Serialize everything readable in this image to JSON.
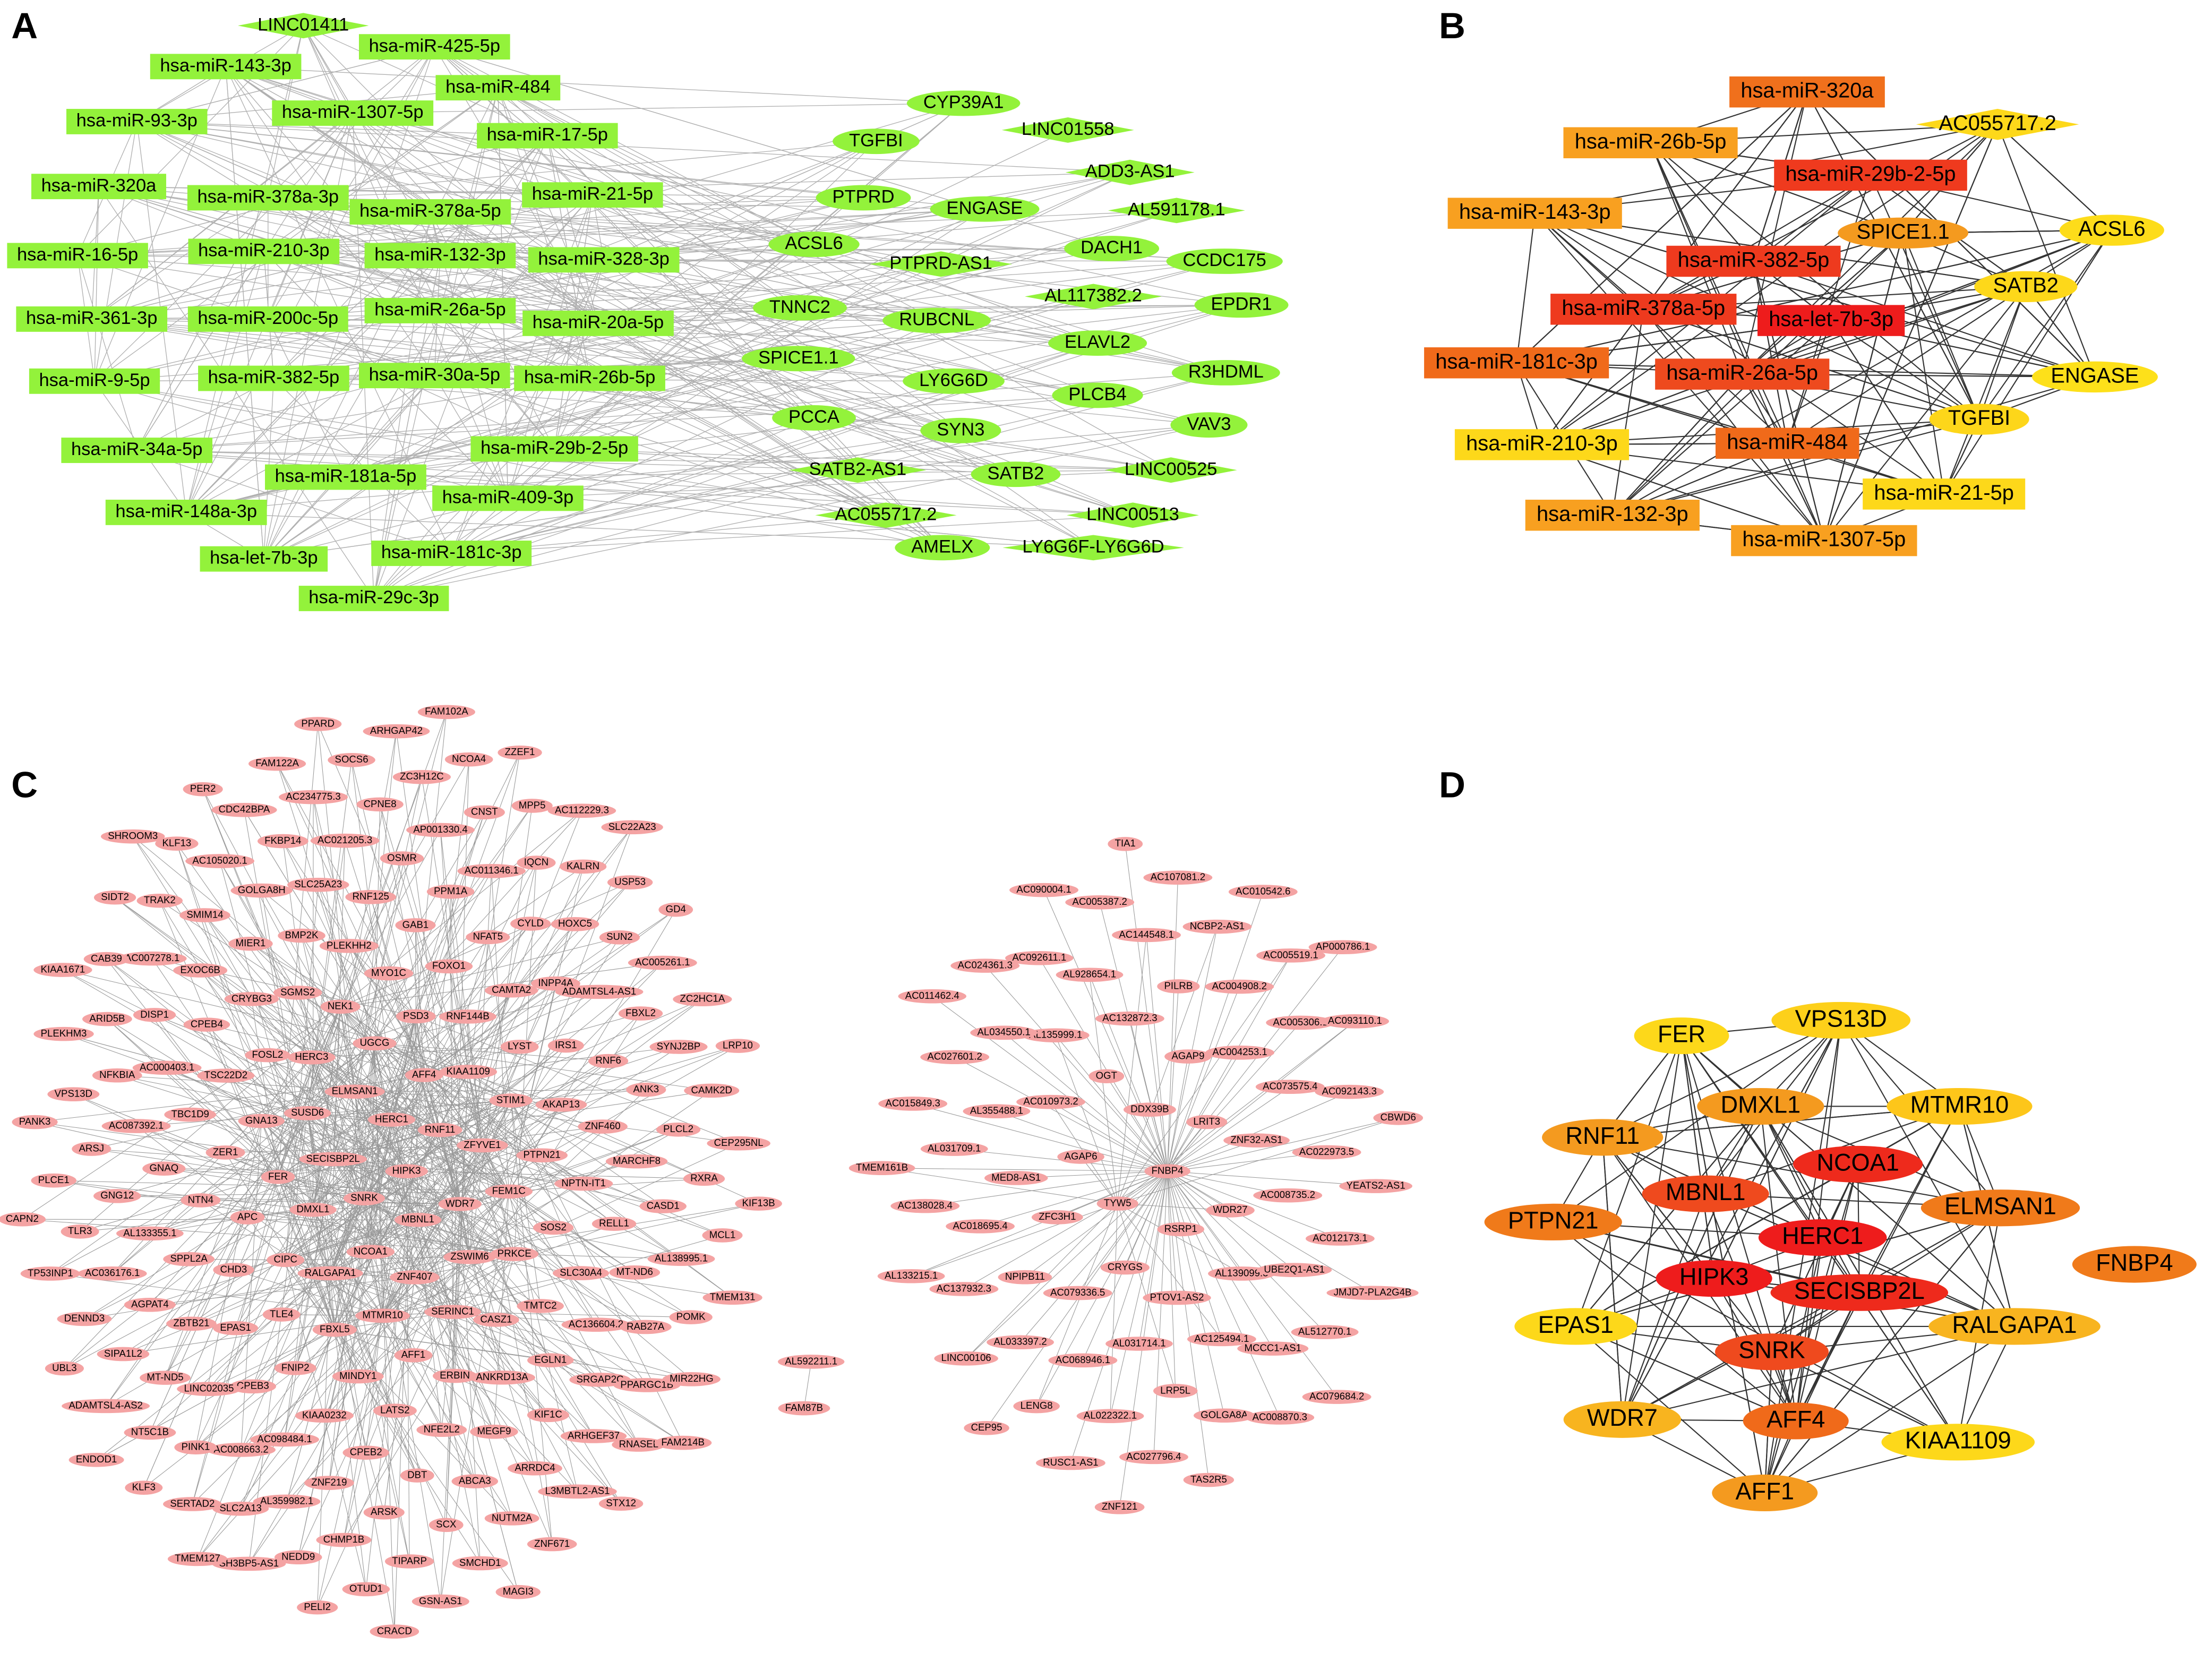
{
  "panels": [
    {
      "label": "A",
      "color": "#93f23b",
      "nodes": [
        {
          "label": "LINC01411",
          "shape": "diamond"
        },
        {
          "label": "hsa-miR-143-3p",
          "shape": "rect"
        },
        {
          "label": "hsa-miR-425-5p",
          "shape": "rect"
        },
        {
          "label": "hsa-miR-484",
          "shape": "rect"
        },
        {
          "label": "hsa-miR-93-3p",
          "shape": "rect"
        },
        {
          "label": "hsa-miR-1307-5p",
          "shape": "rect"
        },
        {
          "label": "hsa-miR-17-5p",
          "shape": "rect"
        },
        {
          "label": "hsa-miR-320a",
          "shape": "rect"
        },
        {
          "label": "hsa-miR-378a-3p",
          "shape": "rect"
        },
        {
          "label": "hsa-miR-21-5p",
          "shape": "rect"
        },
        {
          "label": "hsa-miR-378a-5p",
          "shape": "rect"
        },
        {
          "label": "hsa-miR-16-5p",
          "shape": "rect"
        },
        {
          "label": "hsa-miR-210-3p",
          "shape": "rect"
        },
        {
          "label": "hsa-miR-132-3p",
          "shape": "rect"
        },
        {
          "label": "hsa-miR-328-3p",
          "shape": "rect"
        },
        {
          "label": "hsa-miR-361-3p",
          "shape": "rect"
        },
        {
          "label": "hsa-miR-200c-5p",
          "shape": "rect"
        },
        {
          "label": "hsa-miR-26a-5p",
          "shape": "rect"
        },
        {
          "label": "hsa-miR-20a-5p",
          "shape": "rect"
        },
        {
          "label": "hsa-miR-9-5p",
          "shape": "rect"
        },
        {
          "label": "hsa-miR-382-5p",
          "shape": "rect"
        },
        {
          "label": "hsa-miR-30a-5p",
          "shape": "rect"
        },
        {
          "label": "hsa-miR-26b-5p",
          "shape": "rect"
        },
        {
          "label": "hsa-miR-34a-5p",
          "shape": "rect"
        },
        {
          "label": "hsa-miR-29b-2-5p",
          "shape": "rect"
        },
        {
          "label": "hsa-miR-181a-5p",
          "shape": "rect"
        },
        {
          "label": "hsa-miR-148a-3p",
          "shape": "rect"
        },
        {
          "label": "hsa-miR-409-3p",
          "shape": "rect"
        },
        {
          "label": "hsa-let-7b-3p",
          "shape": "rect"
        },
        {
          "label": "hsa-miR-181c-3p",
          "shape": "rect"
        },
        {
          "label": "hsa-miR-29c-3p",
          "shape": "rect"
        },
        {
          "label": "CYP39A1",
          "shape": "ellipse"
        },
        {
          "label": "LINC01558",
          "shape": "diamond"
        },
        {
          "label": "TGFBI",
          "shape": "ellipse"
        },
        {
          "label": "ADD3-AS1",
          "shape": "diamond"
        },
        {
          "label": "PTPRD",
          "shape": "ellipse"
        },
        {
          "label": "ENGASE",
          "shape": "ellipse"
        },
        {
          "label": "AL591178.1",
          "shape": "diamond"
        },
        {
          "label": "ACSL6",
          "shape": "ellipse"
        },
        {
          "label": "DACH1",
          "shape": "ellipse"
        },
        {
          "label": "CCDC175",
          "shape": "ellipse"
        },
        {
          "label": "PTPRD-AS1",
          "shape": "diamond"
        },
        {
          "label": "AL117382.2",
          "shape": "diamond"
        },
        {
          "label": "EPDR1",
          "shape": "ellipse"
        },
        {
          "label": "TNNC2",
          "shape": "ellipse"
        },
        {
          "label": "RUBCNL",
          "shape": "ellipse"
        },
        {
          "label": "ELAVL2",
          "shape": "ellipse"
        },
        {
          "label": "SPICE1.1",
          "shape": "ellipse"
        },
        {
          "label": "LY6G6D",
          "shape": "ellipse"
        },
        {
          "label": "R3HDML",
          "shape": "ellipse"
        },
        {
          "label": "PLCB4",
          "shape": "ellipse"
        },
        {
          "label": "PCCA",
          "shape": "ellipse"
        },
        {
          "label": "SYN3",
          "shape": "ellipse"
        },
        {
          "label": "VAV3",
          "shape": "ellipse"
        },
        {
          "label": "SATB2-AS1",
          "shape": "diamond"
        },
        {
          "label": "SATB2",
          "shape": "ellipse"
        },
        {
          "label": "LINC00525",
          "shape": "diamond"
        },
        {
          "label": "AC055717.2",
          "shape": "diamond"
        },
        {
          "label": "LINC00513",
          "shape": "diamond"
        },
        {
          "label": "AMELX",
          "shape": "ellipse"
        },
        {
          "label": "LY6G6F-LY6G6D",
          "shape": "diamond"
        }
      ]
    },
    {
      "label": "B",
      "nodes": [
        {
          "label": "hsa-miR-320a",
          "shape": "rect",
          "color": "#f0701c"
        },
        {
          "label": "AC055717.2",
          "shape": "diamond",
          "color": "#fdd81a"
        },
        {
          "label": "hsa-miR-26b-5p",
          "shape": "rect",
          "color": "#f8a020"
        },
        {
          "label": "hsa-miR-29b-2-5p",
          "shape": "rect",
          "color": "#ef3a1e"
        },
        {
          "label": "hsa-miR-143-3p",
          "shape": "rect",
          "color": "#f8a020"
        },
        {
          "label": "SPICE1.1",
          "shape": "ellipse",
          "color": "#f49a1f"
        },
        {
          "label": "ACSL6",
          "shape": "ellipse",
          "color": "#fddc1a"
        },
        {
          "label": "hsa-miR-382-5p",
          "shape": "rect",
          "color": "#ee3a1e"
        },
        {
          "label": "SATB2",
          "shape": "ellipse",
          "color": "#fdd81a"
        },
        {
          "label": "hsa-miR-378a-5p",
          "shape": "rect",
          "color": "#ee3a1e"
        },
        {
          "label": "hsa-let-7b-3p",
          "shape": "rect",
          "color": "#ee1c1c"
        },
        {
          "label": "hsa-miR-181c-3p",
          "shape": "rect",
          "color": "#f06a1a"
        },
        {
          "label": "hsa-miR-26a-5p",
          "shape": "rect",
          "color": "#ee4a1e"
        },
        {
          "label": "ENGASE",
          "shape": "ellipse",
          "color": "#fde01a"
        },
        {
          "label": "TGFBI",
          "shape": "ellipse",
          "color": "#fdd61a"
        },
        {
          "label": "hsa-miR-210-3p",
          "shape": "rect",
          "color": "#fdd81a"
        },
        {
          "label": "hsa-miR-484",
          "shape": "rect",
          "color": "#f06a1a"
        },
        {
          "label": "hsa-miR-21-5p",
          "shape": "rect",
          "color": "#fdd81a"
        },
        {
          "label": "hsa-miR-132-3p",
          "shape": "rect",
          "color": "#f8a020"
        },
        {
          "label": "hsa-miR-1307-5p",
          "shape": "rect",
          "color": "#f8a020"
        }
      ]
    },
    {
      "label": "C",
      "color": "#f4a3a3",
      "components": [
        [
          "HIPK3",
          "SNRK",
          "HERC1",
          "MBNL1",
          "SECISBP2L",
          "RNF11",
          "NCOA1",
          "ELMSAN1",
          "WDR7",
          "DMXL1",
          "AFF4",
          "ZNF407",
          "SUSD6",
          "ZFYVE1",
          "RALGAPA1",
          "UGCG",
          "ZSWIM6",
          "FER",
          "KIAA1109",
          "MTMR10",
          "HERC3",
          "FEM1C",
          "CIPC",
          "PSD3",
          "SERINC1",
          "GNA13",
          "STIM1",
          "FBXL5",
          "NEK1",
          "PRKCE",
          "APC",
          "RNF144B",
          "AFF1",
          "FOSL2",
          "PTPN21",
          "TLE4",
          "MYO1C",
          "CASZ1",
          "ZER1",
          "LYST",
          "MINDY1",
          "SGMS2",
          "SOS2",
          "CHD3",
          "FOXO1",
          "ERBIN",
          "TSC22D2",
          "AKAP13",
          "FNIP2",
          "PLEKHH2",
          "TMTC2",
          "NTN4",
          "CAMTA2",
          "LATS2",
          "CRYBG3",
          "NPTN-IT1",
          "EPAS1",
          "GAB1",
          "ANKRD13A",
          "TBC1D9",
          "IRS1",
          "KIAA0232",
          "BMP2K",
          "SLC30A4",
          "SPPL2A",
          "NFAT5",
          "NFE2L2",
          "CPEB4",
          "ZNF460",
          "CPEB3",
          "RNF125",
          "EGLN1",
          "GNAQ",
          "INPP4A",
          "CPEB2",
          "MIER1",
          "RELL1",
          "ZBTB21",
          "PPM1A",
          "MEGF9",
          "AC000403.1",
          "RNF6",
          "AC098484.1",
          "SLC25A23",
          "AC136604.2",
          "AL133355.1",
          "CYLD",
          "DBT",
          "EXOC6B",
          "MARCHF8",
          "LINC02035",
          "OSMR",
          "KIF1C",
          "AC087392.1",
          "ADAMTSL4-AS1",
          "ZNF219",
          "GOLGA8H",
          "MT-ND6",
          "AGPAT4",
          "AC011346.1",
          "ABCA3",
          "DISP1",
          "ANK3",
          "AC008663.2",
          "AC021205.3",
          "SRGAP2C",
          "GNG12",
          "HOXC5",
          "ARSK",
          "SMIM14",
          "CASD1",
          "MT-ND5",
          "AP001330.4",
          "ARRDC4",
          "NFKBIA",
          "FBXL2",
          "AL359982.1",
          "FKBP14",
          "RAB27A",
          "AC036176.1",
          "IQCN",
          "SCX",
          "AC007278.1",
          "PLCL2",
          "PINK1",
          "CPNE8",
          "ARHGEF37",
          "ARSJ",
          "SUN2",
          "CHMP1B",
          "AC105020.1",
          "AL138995.1",
          "SIPA1L2",
          "CNST",
          "NUTM2A",
          "ARID5B",
          "SYNJ2BP",
          "SLC2A13",
          "AC234775.3",
          "PPARGC1B",
          "TLR3",
          "KALRN",
          "TIPARP",
          "TRAK2",
          "RXRA",
          "NT5C1B",
          "ZC3H12C",
          "L3MBTL2-AS1",
          "VPS13D",
          "AC005261.1",
          "NEDD9",
          "CDC42BPA",
          "POMK",
          "DENND3",
          "MPP5",
          "SMCHD1",
          "CAB39",
          "CAMK2D",
          "SERTAD2",
          "SOCS6",
          "RNASEL",
          "PLCE1",
          "USP53",
          "OTUD1",
          "KLF13",
          "MCL1",
          "ADAMTSL4-AS2",
          "NCOA4",
          "ZNF671",
          "PLEKHM3",
          "ZC2HC1A",
          "SH3BP5-AS1",
          "FAM122A",
          "MIR22HG",
          "TP53INP1",
          "AC112229.3",
          "GSN-AS1",
          "SIDT2",
          "CEP295NL",
          "KLF3",
          "ARHGAP42",
          "STX12",
          "PANK3",
          "GD4",
          "PELI2",
          "PER2",
          "TMEM131",
          "UBL3",
          "ZZEF1",
          "MAGI3",
          "KIAA1671",
          "LRP10",
          "TMEM127",
          "PPARD",
          "FAM214B",
          "CAPN2",
          "SLC22A23",
          "CRACD",
          "SHROOM3",
          "KIF13B",
          "ENDOD1",
          "FAM102A"
        ],
        [
          "FNBP4",
          "TYW5",
          "DDX39B",
          "RSRP1",
          "AGAP6",
          "LRIT3",
          "CRYGS",
          "OGT",
          "WDR27",
          "ZFC3H1",
          "AGAP9",
          "PTOV1-AS2",
          "AC010973.2",
          "ZNF32-AS1",
          "AC079336.5",
          "AC132872.3",
          "AL139099.3",
          "MED8-AS1",
          "AC004253.1",
          "AL031714.1",
          "AL135999.1",
          "AC008735.2",
          "NPIPB11",
          "PILRB",
          "AC125494.1",
          "AL355488.1",
          "AC073575.4",
          "AC068946.1",
          "AL928654.1",
          "UBE2Q1-AS1",
          "AC018695.4",
          "AC004908.2",
          "LRP5L",
          "AL034550.1",
          "AC022973.5",
          "AL033397.2",
          "AC144548.1",
          "MCCC1-AS1",
          "AL031709.1",
          "AC005306.1",
          "AL022322.1",
          "AC092611.1",
          "AC012173.1",
          "AC137932.3",
          "NCBP2-AS1",
          "GOLGA8A",
          "AC027601.2",
          "AC092143.3",
          "LENG8",
          "AC005387.2",
          "AL512770.1",
          "AC138028.4",
          "AC005519.1",
          "AC027796.4",
          "AC024361.3",
          "YEATS2-AS1",
          "LINC00106",
          "AC107081.2",
          "AC008870.3",
          "AC015849.3",
          "AC093110.1",
          "RUSC1-AS1",
          "AC090004.1",
          "JMJD7-PLA2G4B",
          "AL133215.1",
          "AC010542.6",
          "TAS2R5",
          "AC011462.4",
          "CBWD6",
          "CEP95",
          "TIA1",
          "AC079684.2",
          "TMEM161B",
          "AP000786.1",
          "ZNF121"
        ],
        [
          "AL592211.1",
          "FAM87B"
        ]
      ]
    },
    {
      "label": "D",
      "nodes": [
        {
          "label": "FER",
          "color": "#fdd81a"
        },
        {
          "label": "VPS13D",
          "color": "#fdd01a"
        },
        {
          "label": "DMXL1",
          "color": "#f49a1f"
        },
        {
          "label": "MTMR10",
          "color": "#fdc61a"
        },
        {
          "label": "RNF11",
          "color": "#f49a1f"
        },
        {
          "label": "NCOA1",
          "color": "#ee2a1c"
        },
        {
          "label": "MBNL1",
          "color": "#ef4a1e"
        },
        {
          "label": "ELMSAN1",
          "color": "#f07a1a"
        },
        {
          "label": "PTPN21",
          "color": "#f07a1a"
        },
        {
          "label": "HERC1",
          "color": "#ee1c1c"
        },
        {
          "label": "FNBP4",
          "color": "#f07a1a"
        },
        {
          "label": "HIPK3",
          "color": "#ee1c1c"
        },
        {
          "label": "SECISBP2L",
          "color": "#ee2a1c"
        },
        {
          "label": "EPAS1",
          "color": "#fdd81a"
        },
        {
          "label": "RALGAPA1",
          "color": "#f8b41f"
        },
        {
          "label": "SNRK",
          "color": "#ef4a1e"
        },
        {
          "label": "WDR7",
          "color": "#f8b41f"
        },
        {
          "label": "AFF4",
          "color": "#f06a1a"
        },
        {
          "label": "KIAA1109",
          "color": "#fdd81a"
        },
        {
          "label": "AFF1",
          "color": "#f49a1f"
        }
      ]
    }
  ]
}
